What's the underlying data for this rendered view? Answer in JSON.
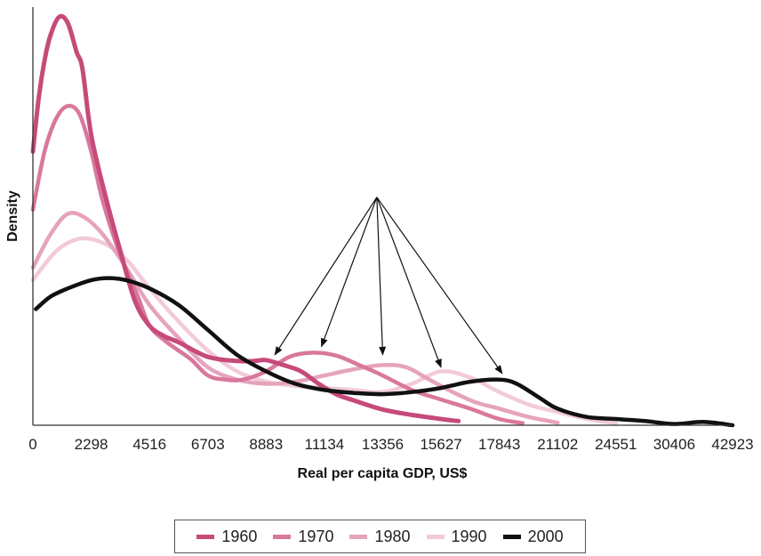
{
  "chart_data": {
    "type": "line",
    "title": "",
    "xlabel": "Real per capita GDP, US$",
    "ylabel": "Density",
    "x_tick_labels": [
      "0",
      "2298",
      "4516",
      "6703",
      "8883",
      "11134",
      "13356",
      "15627",
      "17843",
      "21102",
      "24551",
      "30406",
      "42923"
    ],
    "y_ticks_shown": false,
    "grid": false,
    "legend_position": "bottom",
    "x_scale": "tick-index",
    "xlim": [
      0,
      12
    ],
    "ylim": [
      0,
      1
    ],
    "annotation": {
      "type": "arrows",
      "from": {
        "x": 5.9,
        "y": 0.55
      },
      "to": [
        {
          "x": 4.15,
          "y": 0.17
        },
        {
          "x": 4.95,
          "y": 0.19
        },
        {
          "x": 6.0,
          "y": 0.17
        },
        {
          "x": 7.0,
          "y": 0.14
        },
        {
          "x": 8.05,
          "y": 0.125
        }
      ]
    },
    "series": [
      {
        "name": "1960",
        "color": "#c64a7a",
        "width": 5,
        "x": [
          0,
          0.1,
          0.2,
          0.3,
          0.45,
          0.6,
          0.75,
          0.85,
          1.0,
          1.25,
          1.5,
          1.75,
          2.0,
          2.25,
          2.5,
          3.0,
          3.5,
          3.8,
          4.0,
          4.3,
          4.6,
          4.9,
          5.2,
          5.5,
          6.0,
          6.5,
          7.0,
          7.3
        ],
        "y": [
          0.66,
          0.79,
          0.88,
          0.94,
          0.985,
          0.97,
          0.9,
          0.86,
          0.7,
          0.55,
          0.42,
          0.3,
          0.24,
          0.215,
          0.2,
          0.165,
          0.155,
          0.155,
          0.157,
          0.145,
          0.13,
          0.1,
          0.075,
          0.06,
          0.038,
          0.025,
          0.015,
          0.01
        ]
      },
      {
        "name": "1970",
        "color": "#d9789c",
        "width": 4.5,
        "x": [
          0,
          0.2,
          0.4,
          0.6,
          0.8,
          1.0,
          1.2,
          1.5,
          1.8,
          2.0,
          2.3,
          2.7,
          3.0,
          3.3,
          3.6,
          4.0,
          4.4,
          4.8,
          5.2,
          5.6,
          6.0,
          6.5,
          7.0,
          7.5,
          8.0,
          8.4
        ],
        "y": [
          0.52,
          0.66,
          0.74,
          0.77,
          0.75,
          0.66,
          0.54,
          0.41,
          0.31,
          0.24,
          0.2,
          0.16,
          0.12,
          0.11,
          0.11,
          0.13,
          0.165,
          0.175,
          0.168,
          0.145,
          0.12,
          0.085,
          0.062,
          0.04,
          0.015,
          0.005
        ]
      },
      {
        "name": "1980",
        "color": "#e6a3bd",
        "width": 4.5,
        "x": [
          0,
          0.3,
          0.6,
          0.9,
          1.2,
          1.6,
          2.0,
          2.5,
          3.0,
          3.5,
          4.0,
          4.5,
          5.0,
          5.5,
          6.0,
          6.4,
          6.8,
          7.2,
          7.6,
          8.0,
          8.5,
          9.0
        ],
        "y": [
          0.38,
          0.46,
          0.51,
          0.5,
          0.46,
          0.38,
          0.29,
          0.21,
          0.14,
          0.11,
          0.1,
          0.105,
          0.12,
          0.135,
          0.145,
          0.14,
          0.11,
          0.08,
          0.055,
          0.04,
          0.02,
          0.006
        ]
      },
      {
        "name": "1990",
        "color": "#f2cad9",
        "width": 4.5,
        "x": [
          0,
          0.4,
          0.8,
          1.2,
          1.6,
          2.0,
          2.5,
          3.0,
          3.5,
          4.0,
          4.5,
          5.0,
          5.5,
          6.0,
          6.5,
          7.0,
          7.5,
          8.0,
          8.5,
          9.0,
          9.5,
          10.0
        ],
        "y": [
          0.35,
          0.42,
          0.45,
          0.44,
          0.4,
          0.33,
          0.25,
          0.18,
          0.13,
          0.105,
          0.095,
          0.09,
          0.085,
          0.08,
          0.1,
          0.13,
          0.115,
          0.08,
          0.05,
          0.032,
          0.015,
          0.005
        ]
      },
      {
        "name": "2000",
        "color": "#111111",
        "width": 4.5,
        "x": [
          0.05,
          0.3,
          0.6,
          1.0,
          1.3,
          1.6,
          2.0,
          2.5,
          3.0,
          3.5,
          4.0,
          4.5,
          5.0,
          5.5,
          6.0,
          6.5,
          7.0,
          7.5,
          8.0,
          8.3,
          8.7,
          9.0,
          9.5,
          10.0,
          10.5,
          11.0,
          11.5,
          12.0
        ],
        "y": [
          0.28,
          0.31,
          0.33,
          0.35,
          0.355,
          0.35,
          0.33,
          0.29,
          0.23,
          0.17,
          0.13,
          0.1,
          0.085,
          0.078,
          0.075,
          0.08,
          0.09,
          0.105,
          0.11,
          0.1,
          0.065,
          0.04,
          0.02,
          0.015,
          0.01,
          0.003,
          0.008,
          0.0
        ]
      }
    ]
  }
}
